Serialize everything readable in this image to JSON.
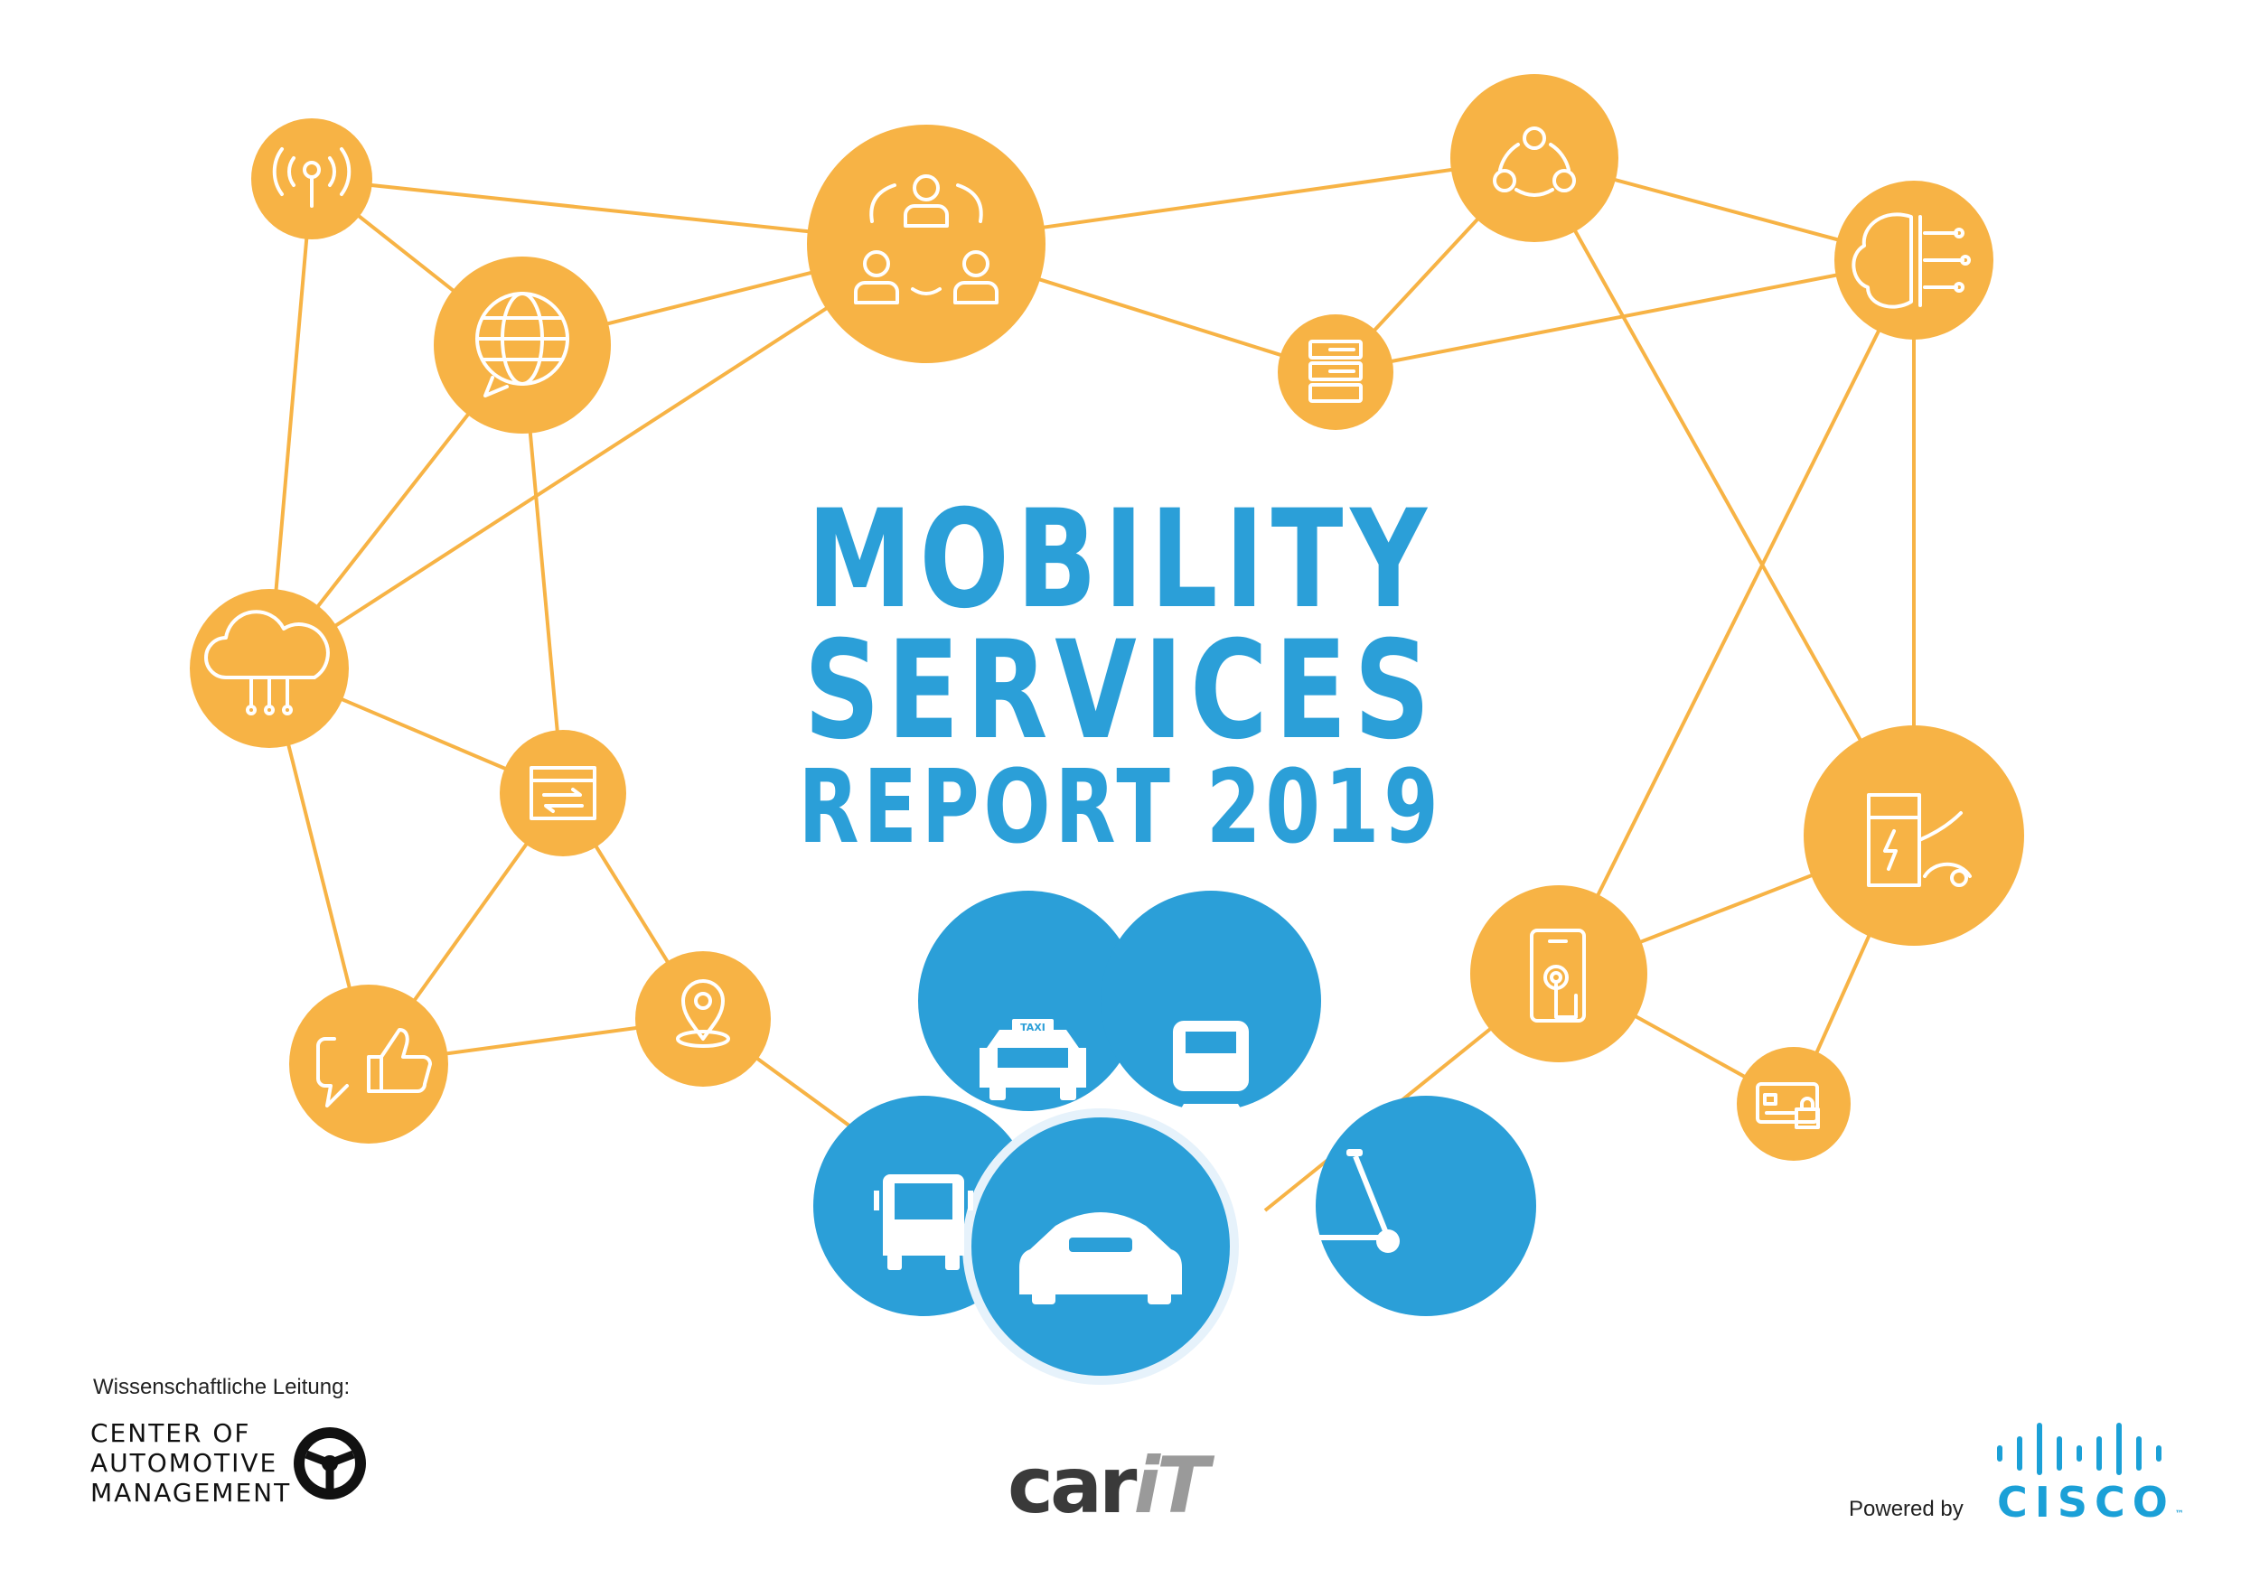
{
  "title": {
    "line1": "MOBILITY",
    "line2": "SERVICES",
    "line3": "REPORT 2019"
  },
  "colors": {
    "title": "#2b9fd8",
    "network_node": "#f7b345",
    "network_line": "#f7b345",
    "mobility_node": "#2b9fd8"
  },
  "network_icons": [
    "antenna-icon",
    "globe-chat-icon",
    "people-cycle-icon",
    "share-icon",
    "server-lock-icon",
    "brain-circuit-icon",
    "cloud-network-icon",
    "browser-transfer-icon",
    "thumbs-up-chat-icon",
    "location-pin-icon",
    "smartphone-touch-icon",
    "charging-station-icon",
    "credit-card-lock-icon"
  ],
  "mobility_icons": [
    "taxi-icon",
    "train-icon",
    "bus-icon",
    "car-icon",
    "scooter-icon"
  ],
  "taxi_sign": "TAXI",
  "footer": {
    "caption": "Wissenschaftliche Leitung:",
    "cam_line1": "CENTER OF",
    "cam_line2": "AUTOMOTIVE",
    "cam_line3": "MANAGEMENT",
    "carit_main": "car",
    "carit_suffix": "iT",
    "powered_by": "Powered by",
    "cisco": "CISCO",
    "cisco_tm": "™"
  }
}
